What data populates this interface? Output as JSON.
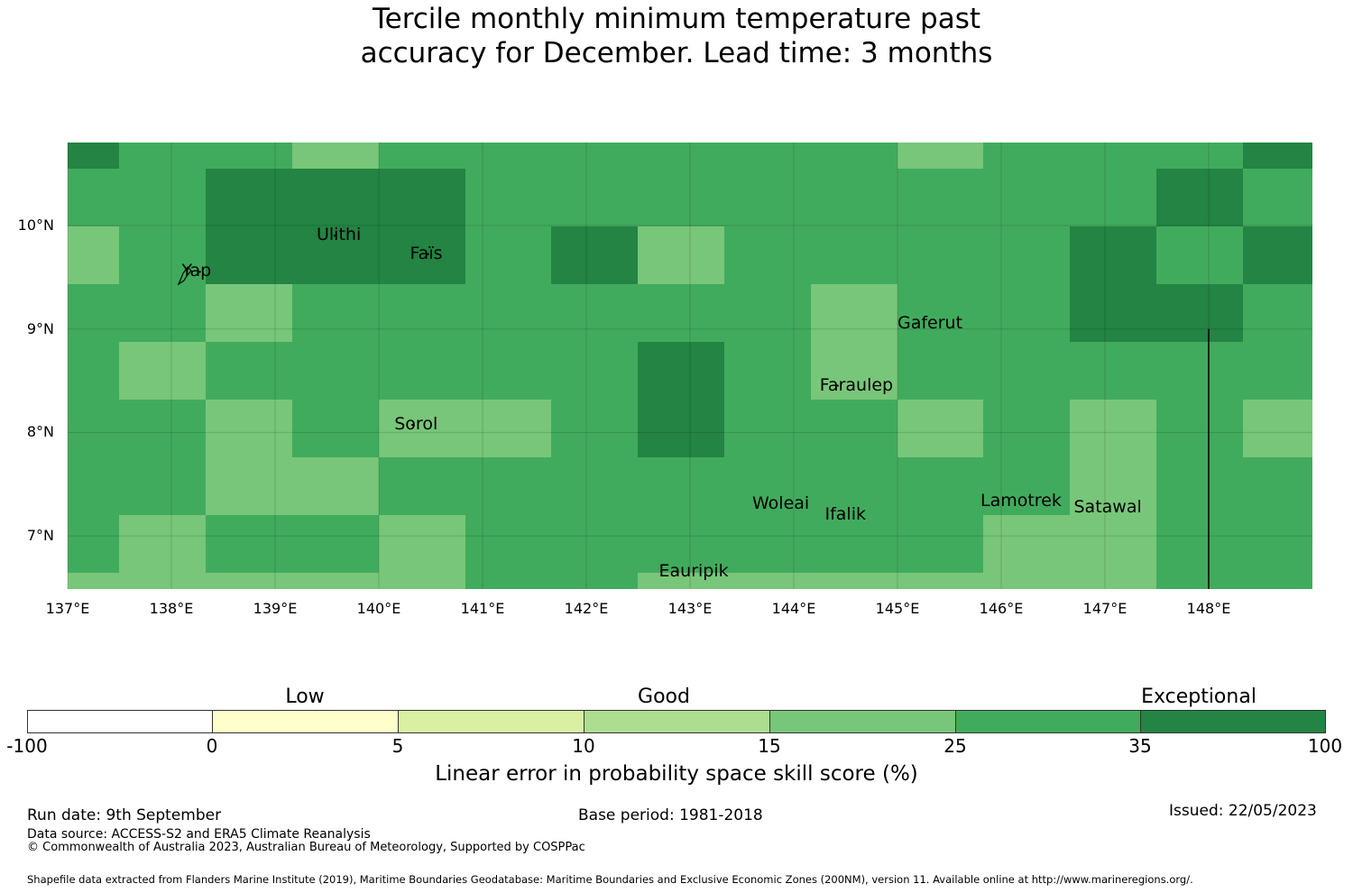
{
  "title": {
    "line1": "Tercile monthly minimum temperature past",
    "line2": "accuracy for December. Lead time: 3 months"
  },
  "map": {
    "lat_labels": [
      "10°N",
      "9°N",
      "8°N",
      "7°N"
    ],
    "lon_labels": [
      "137°E",
      "138°E",
      "139°E",
      "140°E",
      "141°E",
      "142°E",
      "143°E",
      "144°E",
      "145°E",
      "146°E",
      "147°E",
      "148°E"
    ],
    "lon_values": [
      137,
      138,
      139,
      140,
      141,
      142,
      143,
      144,
      145,
      146,
      147,
      148
    ],
    "lat_values": [
      10,
      9,
      8,
      7
    ],
    "places": [
      {
        "name": "Yap",
        "lon": 138.1,
        "lat": 9.5
      },
      {
        "name": "Ulithi",
        "lon": 139.4,
        "lat": 9.85
      },
      {
        "name": "Faïs",
        "lon": 140.3,
        "lat": 9.67
      },
      {
        "name": "Gaferut",
        "lon": 145.0,
        "lat": 9.0
      },
      {
        "name": "Faraulep",
        "lon": 144.25,
        "lat": 8.4
      },
      {
        "name": "Sorol",
        "lon": 140.15,
        "lat": 8.02
      },
      {
        "name": "Woleai",
        "lon": 143.6,
        "lat": 7.25
      },
      {
        "name": "Ifalik",
        "lon": 144.3,
        "lat": 7.15
      },
      {
        "name": "Lamotrek",
        "lon": 145.8,
        "lat": 7.28
      },
      {
        "name": "Satawal",
        "lon": 146.7,
        "lat": 7.22
      },
      {
        "name": "Eauripik",
        "lon": 142.7,
        "lat": 6.6
      }
    ],
    "grid_rows_lat_centers": [
      10.6,
      10.05,
      9.5,
      8.95,
      8.4,
      7.85,
      7.3,
      6.75,
      6.55
    ],
    "skill_grid": [
      [
        4,
        3,
        3,
        2,
        3,
        3,
        3,
        3,
        3,
        3,
        2,
        3,
        3,
        3,
        4
      ],
      [
        3,
        3,
        4,
        4,
        4,
        3,
        3,
        3,
        3,
        3,
        3,
        3,
        3,
        4,
        3
      ],
      [
        2,
        3,
        4,
        4,
        4,
        3,
        4,
        2,
        3,
        3,
        3,
        3,
        4,
        3,
        4
      ],
      [
        3,
        3,
        2,
        3,
        3,
        3,
        3,
        3,
        3,
        2,
        3,
        3,
        4,
        4,
        3
      ],
      [
        3,
        2,
        3,
        3,
        3,
        3,
        3,
        4,
        3,
        2,
        3,
        3,
        3,
        3,
        3
      ],
      [
        3,
        3,
        2,
        3,
        2,
        2,
        3,
        4,
        3,
        3,
        2,
        3,
        2,
        3,
        2
      ],
      [
        3,
        3,
        2,
        2,
        3,
        3,
        3,
        3,
        3,
        3,
        3,
        3,
        2,
        3,
        3
      ],
      [
        3,
        2,
        3,
        3,
        2,
        3,
        3,
        3,
        3,
        3,
        3,
        2,
        2,
        3,
        3
      ],
      [
        2,
        2,
        2,
        2,
        2,
        3,
        3,
        2,
        2,
        2,
        2,
        2,
        2,
        3,
        3
      ]
    ],
    "vertical_line_lon": 148.0,
    "vertical_line_from_lat": 9.0
  },
  "colorbar": {
    "categories": [
      "Low",
      "Good",
      "Exceptional"
    ],
    "ticks": [
      "-100",
      "0",
      "5",
      "10",
      "15",
      "25",
      "35",
      "100"
    ],
    "colors": [
      "#ffffff",
      "#ffffcc",
      "#d9f0a3",
      "#addd8e",
      "#78c679",
      "#41ab5d",
      "#238443"
    ],
    "label": "Linear error in probability space skill score (%)"
  },
  "footer": {
    "run_date": "Run date: 9th September",
    "base_period": "Base period: 1981-2018",
    "issued": "Issued: 22/05/2023",
    "data_source": "Data source: ACCESS-S2 and ERA5 Climate Reanalysis",
    "copyright": "© Commonwealth of Australia 2023, Australian Bureau of Meteorology, Supported by COSPPac",
    "shapefile": "Shapefile data extracted from Flanders Marine Institute (2019), Maritime Boundaries Geodatabase: Maritime Boundaries and Exclusive Economic Zones (200NM), version 11. Available online at http://www.marineregions.org/."
  }
}
